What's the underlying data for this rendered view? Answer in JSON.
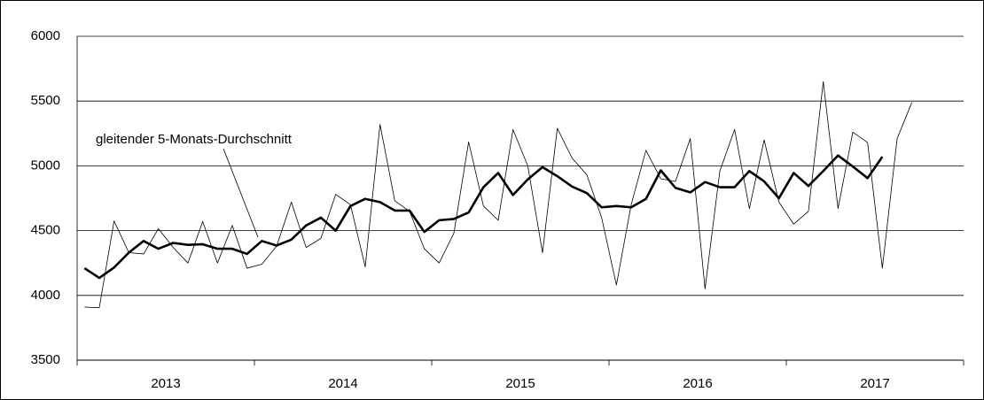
{
  "chart_data": {
    "type": "line",
    "annotation": "gleitender 5-Monats-Durchschnitt",
    "categories": [
      "2013",
      "2014",
      "2015",
      "2016",
      "2017"
    ],
    "ylim": [
      3500,
      6000
    ],
    "yticks": [
      3500,
      4000,
      4500,
      5000,
      5500,
      6000
    ],
    "grid": true,
    "series": [
      {
        "color": "#000000",
        "values": [
          [
            3910,
            3905,
            4575,
            4330,
            4320,
            4515,
            4370,
            4250,
            4570,
            4250,
            4540,
            4210
          ],
          [
            4240,
            4380,
            4720,
            4370,
            4440,
            4780,
            4700,
            4220,
            5320,
            4730,
            4650,
            4360
          ],
          [
            4250,
            4480,
            5185,
            4690,
            4580,
            5280,
            5000,
            4330,
            5290,
            5060,
            4930,
            4600
          ],
          [
            4080,
            4700,
            5120,
            4900,
            4880,
            5210,
            4050,
            4960,
            5280,
            4670,
            5200,
            4720
          ],
          [
            4550,
            4650,
            5650,
            4670,
            5260,
            5180,
            4210,
            5210,
            5490
          ]
        ]
      },
      {
        "color": "#000000",
        "values": [
          [
            4210,
            4135,
            4215,
            4330,
            4420,
            4360,
            4405,
            4390,
            4395,
            4360,
            4360,
            4320
          ],
          [
            4420,
            4385,
            4430,
            4540,
            4600,
            4500,
            4690,
            4745,
            4720,
            4655,
            4655,
            4490
          ],
          [
            4580,
            4590,
            4640,
            4835,
            4945,
            4775,
            4895,
            4990,
            4920,
            4840,
            4790,
            4680
          ],
          [
            4690,
            4680,
            4745,
            4965,
            4830,
            4795,
            4875,
            4835,
            4835,
            4960,
            4880,
            4750
          ],
          [
            4945,
            4845,
            4960,
            5080,
            4995,
            4905,
            5070
          ]
        ]
      }
    ]
  }
}
